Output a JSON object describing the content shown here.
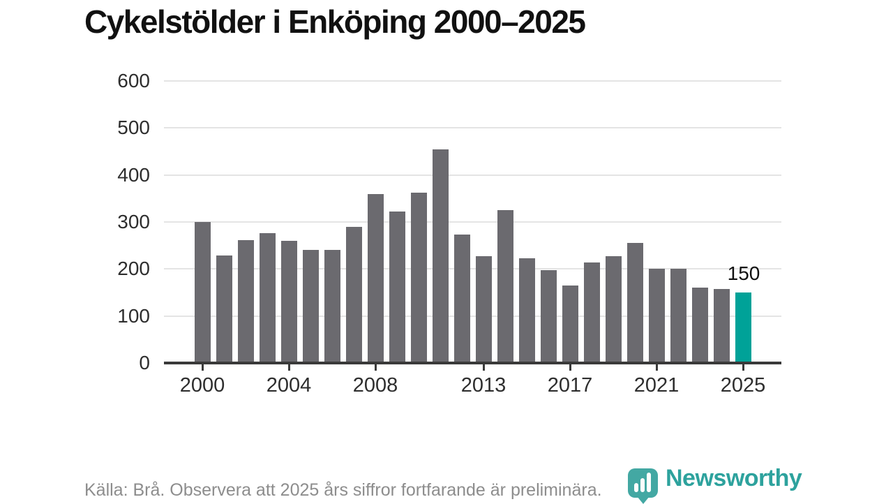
{
  "header": {
    "title": "Cykelstölder i Enköping 2000–2025"
  },
  "chart_data": {
    "type": "bar",
    "title": "Cykelstölder i Enköping 2000–2025",
    "x": [
      2000,
      2001,
      2002,
      2003,
      2004,
      2005,
      2006,
      2007,
      2008,
      2009,
      2010,
      2011,
      2012,
      2013,
      2014,
      2015,
      2016,
      2017,
      2018,
      2019,
      2020,
      2021,
      2022,
      2023,
      2024,
      2025
    ],
    "values": [
      300,
      228,
      262,
      276,
      260,
      241,
      240,
      289,
      360,
      323,
      363,
      455,
      274,
      227,
      325,
      223,
      197,
      165,
      214,
      227,
      256,
      201,
      201,
      161,
      158,
      150
    ],
    "xlabel": "",
    "ylabel": "",
    "ylim": [
      0,
      600
    ],
    "yticks": [
      0,
      100,
      200,
      300,
      400,
      500,
      600
    ],
    "xticks": [
      2000,
      2004,
      2008,
      2013,
      2017,
      2021,
      2025
    ],
    "grid": true,
    "legend_position": "none",
    "bar_color": "#6b6a6f",
    "highlight": {
      "year": 2025,
      "value": 150,
      "label": "150",
      "color": "#00a298"
    }
  },
  "footer": {
    "source": "Källa: Brå. Observera att 2025 års siffror fortfarande är preliminära."
  },
  "branding": {
    "name": "Newsworthy",
    "icon": "bar-chart-pin-icon",
    "icon_color": "#43a8a3",
    "text_color": "#2da29d"
  }
}
